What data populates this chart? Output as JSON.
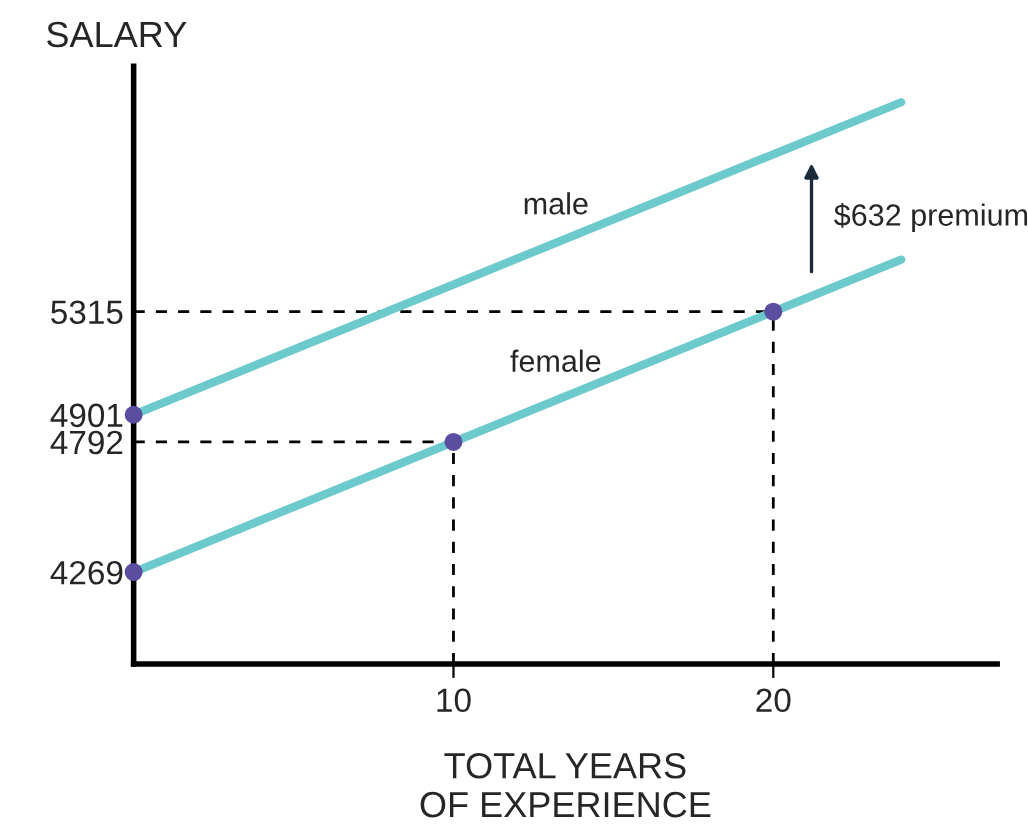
{
  "chart_data": {
    "type": "line",
    "ylabel": "SALARY",
    "xlabel": "TOTAL YEARS\nOF EXPERIENCE",
    "xlim": [
      0,
      27
    ],
    "xticks": [
      10,
      20
    ],
    "ylim": [
      3900,
      6300
    ],
    "yticks": [
      4269,
      4792,
      4901,
      5315
    ],
    "grid": false,
    "legend": false,
    "marker": "none",
    "series": [
      {
        "name": "male",
        "color": "#6cc9cc",
        "x": [
          0,
          24
        ],
        "values": [
          4901,
          6156
        ]
      },
      {
        "name": "female",
        "color": "#6cc9cc",
        "x": [
          0,
          24
        ],
        "values": [
          4269,
          5524
        ]
      },
      {
        "type": "line",
        "color": "#000000",
        "line_style": "dashed",
        "x": [
          0,
          20
        ],
        "values": [
          5315,
          5315
        ]
      },
      {
        "type": "line",
        "color": "#000000",
        "line_style": "dashed",
        "x": [
          20,
          20
        ],
        "values": [
          3900,
          5315
        ]
      },
      {
        "type": "line",
        "color": "#000000",
        "line_style": "dashed",
        "x": [
          0,
          10
        ],
        "values": [
          4792,
          4792
        ]
      },
      {
        "type": "line",
        "color": "#000000",
        "line_style": "dashed",
        "x": [
          10,
          10
        ],
        "values": [
          3900,
          4792
        ]
      },
      {
        "type": "scatter",
        "color": "#5b4ea0",
        "marker": "circle",
        "x": [
          0,
          0,
          10,
          20
        ],
        "values": [
          4269,
          4901,
          4792,
          5315
        ]
      }
    ],
    "annotations": [
      "$632 premium"
    ]
  }
}
